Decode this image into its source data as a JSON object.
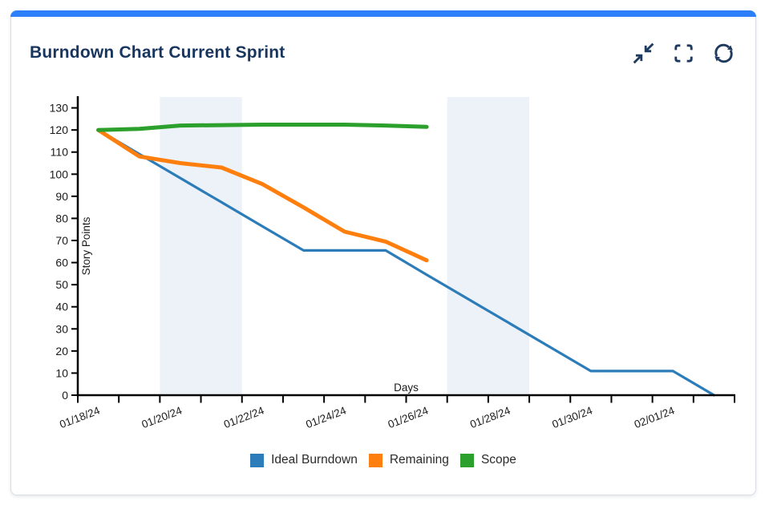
{
  "header": {
    "title": "Burndown Chart Current Sprint",
    "icons": [
      "collapse-icon",
      "fullscreen-icon",
      "refresh-icon"
    ]
  },
  "colors": {
    "accent_bar": "#2d7ff9",
    "title_text": "#17355e",
    "icon": "#1e3a5f",
    "axis": "#000000",
    "tick_label": "#1a1a1a",
    "weekend_band": "#edf1f8",
    "card_border": "#d9dde3",
    "legend_text": "#2b2b2b"
  },
  "chart_data": {
    "type": "line",
    "title": "Burndown Chart Current Sprint",
    "xlabel": "Days",
    "ylabel": "Story Points",
    "ylim": [
      0,
      135
    ],
    "yticks": [
      0,
      10,
      20,
      30,
      40,
      50,
      60,
      70,
      80,
      90,
      100,
      110,
      120,
      130
    ],
    "axis_dates": [
      "01/18/24",
      "01/19/24",
      "01/20/24",
      "01/21/24",
      "01/22/24",
      "01/23/24",
      "01/24/24",
      "01/25/24",
      "01/26/24",
      "01/27/24",
      "01/28/24",
      "01/29/24",
      "01/30/24",
      "01/31/24",
      "02/01/24",
      "02/02/24",
      "02/03/24"
    ],
    "x_tick_labels": [
      "01/18/24",
      "01/20/24",
      "01/22/24",
      "01/24/24",
      "01/26/24",
      "01/28/24",
      "01/30/24",
      "02/01/24"
    ],
    "weekend_bands": [
      {
        "from": "01/20/24",
        "to": "01/22/24"
      },
      {
        "from": "01/27/24",
        "to": "01/29/24"
      }
    ],
    "grid": false,
    "legend_position": "bottom",
    "series": [
      {
        "name": "Ideal Burndown",
        "color": "#2b7cb9",
        "dates": [
          "01/18/24",
          "01/19/24",
          "01/20/24",
          "01/21/24",
          "01/22/24",
          "01/23/24",
          "01/24/24",
          "01/25/24",
          "01/26/24",
          "01/27/24",
          "01/28/24",
          "01/29/24",
          "01/30/24",
          "01/31/24",
          "02/01/24",
          "02/02/24"
        ],
        "values": [
          120,
          109.1,
          98.2,
          87.3,
          76.4,
          65.5,
          65.5,
          65.5,
          54.5,
          43.6,
          32.7,
          21.8,
          10.9,
          10.9,
          10.9,
          0
        ]
      },
      {
        "name": "Remaining",
        "color": "#ff7f0e",
        "dates": [
          "01/18/24",
          "01/19/24",
          "01/20/24",
          "01/21/24",
          "01/22/24",
          "01/23/24",
          "01/24/24",
          "01/25/24",
          "01/26/24"
        ],
        "values": [
          120,
          108,
          105,
          103,
          95.5,
          85,
          74,
          69.5,
          61
        ]
      },
      {
        "name": "Scope",
        "color": "#2ca02c",
        "dates": [
          "01/18/24",
          "01/19/24",
          "01/20/24",
          "01/21/24",
          "01/22/24",
          "01/23/24",
          "01/24/24",
          "01/25/24",
          "01/26/24"
        ],
        "values": [
          120,
          120.5,
          122,
          122.2,
          122.4,
          122.4,
          122.4,
          122,
          121.4
        ]
      }
    ]
  }
}
